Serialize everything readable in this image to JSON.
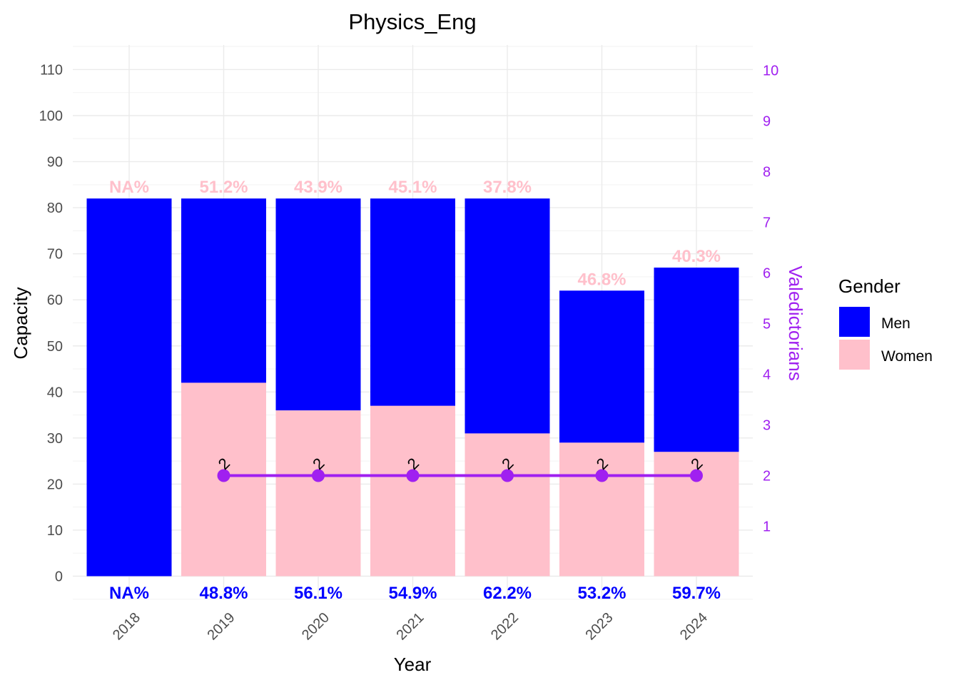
{
  "chart_data": {
    "type": "bar",
    "stacked": true,
    "title": "Physics_Eng",
    "xlabel": "Year",
    "ylabel": "Capacity",
    "y2label": "Valedictorians",
    "categories": [
      "2018",
      "2019",
      "2020",
      "2021",
      "2022",
      "2023",
      "2024"
    ],
    "series": [
      {
        "name": "Women",
        "color": "#ffc0cb",
        "values": [
          0,
          42,
          36,
          37,
          31,
          29,
          27
        ]
      },
      {
        "name": "Men",
        "color": "#0000ff",
        "values": [
          82,
          40,
          46,
          45,
          51,
          33,
          40
        ]
      }
    ],
    "totals": [
      82,
      82,
      82,
      82,
      82,
      62,
      67
    ],
    "top_labels": [
      "NA%",
      "51.2%",
      "43.9%",
      "45.1%",
      "37.8%",
      "46.8%",
      "40.3%"
    ],
    "bottom_labels": [
      "NA%",
      "48.8%",
      "56.1%",
      "54.9%",
      "62.2%",
      "53.2%",
      "59.7%"
    ],
    "line_series": {
      "name": "Valedictorians",
      "color": "#a020f0",
      "x": [
        "2019",
        "2020",
        "2021",
        "2022",
        "2023",
        "2024"
      ],
      "values": [
        2,
        2,
        2,
        2,
        2,
        2
      ],
      "labels": [
        "2",
        "2",
        "2",
        "2",
        "2",
        "2"
      ]
    },
    "ylim": [
      0,
      115
    ],
    "y_ticks": [
      0,
      10,
      20,
      30,
      40,
      50,
      60,
      70,
      80,
      90,
      100,
      110
    ],
    "y2lim": [
      0,
      10.45
    ],
    "y2_ticks": [
      1,
      2,
      3,
      4,
      5,
      6,
      7,
      8,
      9,
      10
    ],
    "legend": {
      "title": "Gender",
      "position": "right",
      "items": [
        {
          "label": "Men",
          "color": "#0000ff"
        },
        {
          "label": "Women",
          "color": "#ffc0cb"
        }
      ]
    },
    "grid": true
  }
}
